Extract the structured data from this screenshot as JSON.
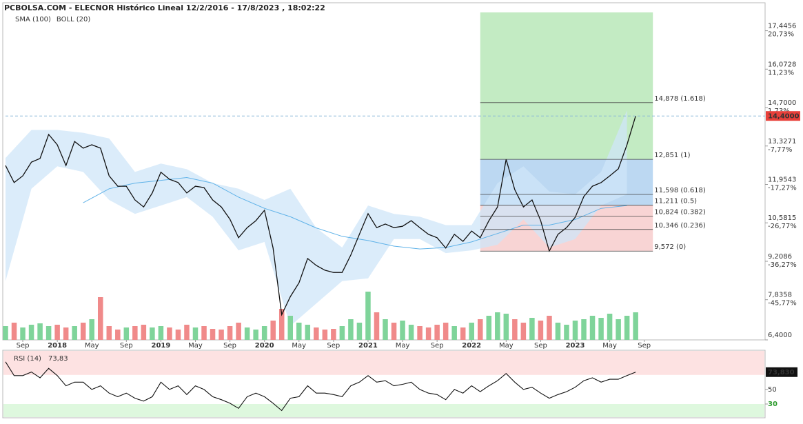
{
  "chart_data": [
    {
      "type": "line",
      "title": "PCBOLSA.COM - ELECNOR Histórico Lineal 12/2/2016 - 17/8/2023 , 18:02:22",
      "x": [
        "2017-07",
        "2017-08",
        "2017-09",
        "2017-10",
        "2017-11",
        "2017-12",
        "2018-01",
        "2018-02",
        "2018-03",
        "2018-04",
        "2018-05",
        "2018-06",
        "2018-07",
        "2018-08",
        "2018-09",
        "2018-10",
        "2018-11",
        "2018-12",
        "2019-01",
        "2019-02",
        "2019-03",
        "2019-04",
        "2019-05",
        "2019-06",
        "2019-07",
        "2019-08",
        "2019-09",
        "2019-10",
        "2019-11",
        "2019-12",
        "2020-01",
        "2020-02",
        "2020-03",
        "2020-04",
        "2020-05",
        "2020-06",
        "2020-07",
        "2020-08",
        "2020-09",
        "2020-10",
        "2020-11",
        "2020-12",
        "2021-01",
        "2021-02",
        "2021-03",
        "2021-04",
        "2021-05",
        "2021-06",
        "2021-07",
        "2021-08",
        "2021-09",
        "2021-10",
        "2021-11",
        "2021-12",
        "2022-01",
        "2022-02",
        "2022-03",
        "2022-04",
        "2022-05",
        "2022-06",
        "2022-07",
        "2022-08",
        "2022-09",
        "2022-10",
        "2022-11",
        "2022-12",
        "2023-01",
        "2023-02",
        "2023-03",
        "2023-04",
        "2023-05",
        "2023-06",
        "2023-07",
        "2023-08"
      ],
      "series": [
        {
          "color": "#111111",
          "values": [
            12.63,
            12.02,
            12.26,
            12.75,
            12.88,
            13.74,
            13.37,
            12.63,
            13.49,
            13.25,
            13.37,
            13.25,
            12.26,
            11.89,
            11.89,
            11.4,
            11.15,
            11.65,
            12.39,
            12.14,
            12.02,
            11.65,
            11.89,
            11.84,
            11.4,
            11.15,
            10.71,
            10.05,
            10.41,
            10.66,
            11.03,
            9.68,
            7.3,
            7.95,
            8.44,
            9.31,
            9.06,
            8.89,
            8.81,
            8.81,
            9.43,
            10.17,
            10.91,
            10.41,
            10.54,
            10.41,
            10.46,
            10.66,
            10.41,
            10.17,
            10.05,
            9.68,
            10.17,
            9.92,
            10.29,
            10.05,
            10.66,
            11.15,
            12.85,
            11.77,
            11.15,
            11.4,
            10.66,
            9.57,
            10.17,
            10.41,
            10.78,
            11.52,
            11.89,
            12.02,
            12.26,
            12.51,
            13.37,
            14.4
          ]
        }
      ],
      "volume": {
        "up_color": "#7fd49a",
        "down_color": "#f08a8a",
        "values": [
          20,
          25,
          18,
          22,
          24,
          20,
          22,
          18,
          20,
          25,
          30,
          62,
          20,
          15,
          18,
          20,
          22,
          18,
          20,
          18,
          15,
          22,
          18,
          20,
          16,
          15,
          20,
          25,
          18,
          15,
          20,
          28,
          45,
          35,
          25,
          22,
          18,
          15,
          16,
          20,
          30,
          25,
          70,
          40,
          30,
          25,
          28,
          22,
          20,
          18,
          22,
          25,
          20,
          18,
          25,
          30,
          35,
          40,
          38,
          30,
          25,
          32,
          28,
          35,
          25,
          22,
          28,
          30,
          35,
          32,
          38,
          30,
          35,
          40
        ]
      },
      "indicators": {
        "x": [
          "2017-07",
          "2017-10",
          "2018-01",
          "2018-04",
          "2018-07",
          "2018-10",
          "2019-01",
          "2019-04",
          "2019-07",
          "2019-10",
          "2020-01",
          "2020-04",
          "2020-07",
          "2020-10",
          "2021-01",
          "2021-04",
          "2021-07",
          "2021-10",
          "2022-01",
          "2022-04",
          "2022-07",
          "2022-10",
          "2023-01",
          "2023-04",
          "2023-07"
        ],
        "series": [
          {
            "name": "SMA (100)",
            "color": "#5fb2e8",
            "label_color": "#8cc8f0",
            "values": [
              null,
              null,
              null,
              11.3,
              11.8,
              12.0,
              12.1,
              12.2,
              12.0,
              11.5,
              11.1,
              10.8,
              10.4,
              10.1,
              9.95,
              9.75,
              9.65,
              9.7,
              9.9,
              10.2,
              10.5,
              10.5,
              10.7,
              11.1,
              11.2
            ]
          },
          {
            "name": "BOLL (20)",
            "color": "#cfe6f8",
            "label_color": "#c4c4c4",
            "upper": [
              12.9,
              13.9,
              13.9,
              13.8,
              13.6,
              12.4,
              12.7,
              12.5,
              12.0,
              11.8,
              11.4,
              11.8,
              10.4,
              9.7,
              11.2,
              10.9,
              10.8,
              10.5,
              10.5,
              12.0,
              12.6,
              11.7,
              11.6,
              12.4,
              14.6
            ],
            "lower": [
              8.5,
              11.8,
              12.6,
              12.4,
              11.4,
              10.9,
              11.2,
              11.5,
              10.8,
              9.6,
              9.9,
              6.9,
              7.7,
              8.5,
              8.6,
              10.0,
              10.0,
              9.5,
              9.6,
              9.8,
              10.7,
              9.7,
              10.0,
              11.2,
              11.6
            ]
          }
        ]
      },
      "xlim": [
        "2017-07",
        "2024-11"
      ],
      "xticks": [
        {
          "value": "2017-09",
          "label": "Sep"
        },
        {
          "value": "2018-01",
          "label": "2018"
        },
        {
          "value": "2018-05",
          "label": "May"
        },
        {
          "value": "2018-09",
          "label": "Sep"
        },
        {
          "value": "2019-01",
          "label": "2019"
        },
        {
          "value": "2019-05",
          "label": "May"
        },
        {
          "value": "2019-09",
          "label": "Sep"
        },
        {
          "value": "2020-01",
          "label": "2020"
        },
        {
          "value": "2020-05",
          "label": "May"
        },
        {
          "value": "2020-09",
          "label": "Sep"
        },
        {
          "value": "2021-01",
          "label": "2021"
        },
        {
          "value": "2021-05",
          "label": "May"
        },
        {
          "value": "2021-09",
          "label": "Sep"
        },
        {
          "value": "2022-01",
          "label": "2022"
        },
        {
          "value": "2022-05",
          "label": "May"
        },
        {
          "value": "2022-09",
          "label": "Sep"
        },
        {
          "value": "2023-01",
          "label": "2023"
        },
        {
          "value": "2023-05",
          "label": "May"
        },
        {
          "value": "2023-09",
          "label": "Sep"
        }
      ],
      "ylim": [
        6.4,
        18.1
      ],
      "yticks": [
        {
          "value": 17.4456,
          "label": "17,4456",
          "change": "20,73%"
        },
        {
          "value": 16.0728,
          "label": "16,0728",
          "change": "11,23%"
        },
        {
          "value": 14.7,
          "label": "14,7000",
          "change": "1,73%"
        },
        {
          "value": 13.3271,
          "label": "13,3271",
          "change": "-7,77%"
        },
        {
          "value": 11.9543,
          "label": "11,9543",
          "change": "-17,27%"
        },
        {
          "value": 10.5815,
          "label": "10,5815",
          "change": "-26,77%"
        },
        {
          "value": 9.2086,
          "label": "9,2086",
          "change": "-36,27%"
        },
        {
          "value": 7.8358,
          "label": "7,8358",
          "change": "-45,77%"
        },
        {
          "value": 6.4,
          "label": "6,4000"
        }
      ],
      "last": {
        "value": 14.4,
        "label": "14,4000",
        "color": "#e8403a"
      },
      "fibonacci": {
        "x": [
          "2022-02",
          "2023-10"
        ],
        "levels": [
          {
            "value": 14.878,
            "label": "14,878 (1.618)",
            "color": "#44c044"
          },
          {
            "value": 12.851,
            "label": "12,851 (1)",
            "color": "#44c044"
          },
          {
            "value": 11.598,
            "label": "11,598 (0.618)",
            "color": "#2f86d8"
          },
          {
            "value": 11.211,
            "label": "11,211 (0.5)",
            "color": "#2f86d8"
          },
          {
            "value": 10.824,
            "label": "10,824 (0.382)",
            "color": "#e87878"
          },
          {
            "value": 10.346,
            "label": "10,346 (0.236)",
            "color": "#e87878"
          },
          {
            "value": 9.572,
            "label": "9,572 (0)",
            "color": "#e87878"
          }
        ]
      }
    },
    {
      "type": "line",
      "title": "RSI (14)",
      "title_value": "73,83",
      "last_label": "73,830",
      "color": "#111111",
      "values": [
        88,
        69,
        69,
        74,
        66,
        79,
        69,
        55,
        60,
        60,
        50,
        55,
        45,
        40,
        45,
        38,
        34,
        40,
        60,
        50,
        55,
        43,
        55,
        50,
        40,
        36,
        31,
        24,
        40,
        45,
        40,
        31,
        21,
        38,
        40,
        55,
        45,
        45,
        43,
        40,
        55,
        60,
        69,
        60,
        62,
        55,
        57,
        60,
        50,
        45,
        43,
        36,
        50,
        45,
        55,
        47,
        55,
        62,
        72,
        60,
        50,
        53,
        45,
        38,
        43,
        47,
        53,
        62,
        66,
        60,
        64,
        64,
        69,
        73.83
      ],
      "ylim": [
        12,
        102
      ],
      "yticks": [
        50,
        30
      ],
      "overbought": 70,
      "oversold": 30,
      "overbought_color": "#fde2e2",
      "oversold_color": "#def8de"
    }
  ]
}
